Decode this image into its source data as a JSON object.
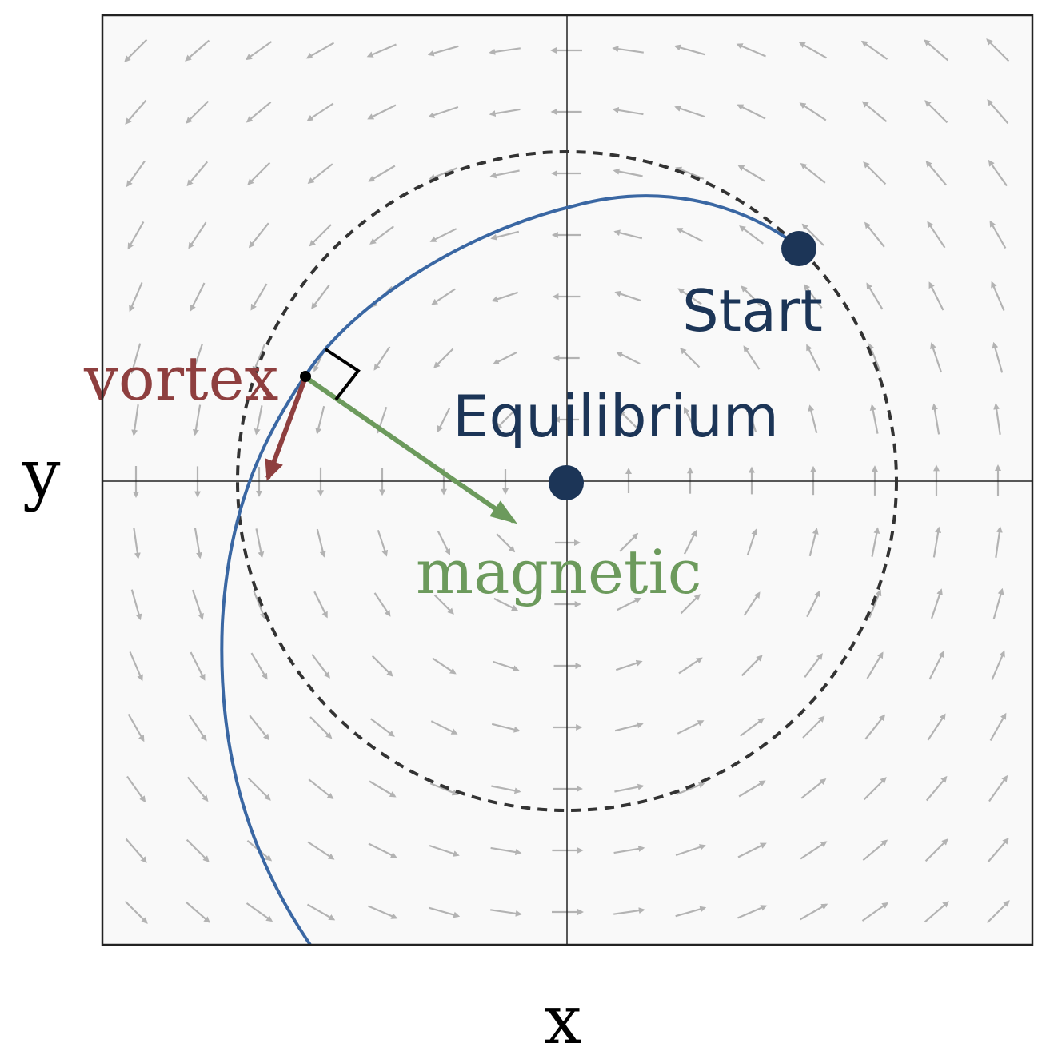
{
  "labels": {
    "x_axis": "x",
    "y_axis": "y",
    "start": "Start",
    "equilibrium": "Equilibrium",
    "vortex": "vortex",
    "magnetic": "magnetic"
  },
  "colors": {
    "panel_bg": "#f9f9f9",
    "field_arrow": "#b3b3b3",
    "trajectory": "#3a67a3",
    "dashed_circle": "#333333",
    "point": "#1c3557",
    "vortex": "#8e3f3f",
    "magnetic": "#6c9a5c",
    "axes": "#222222"
  }
}
